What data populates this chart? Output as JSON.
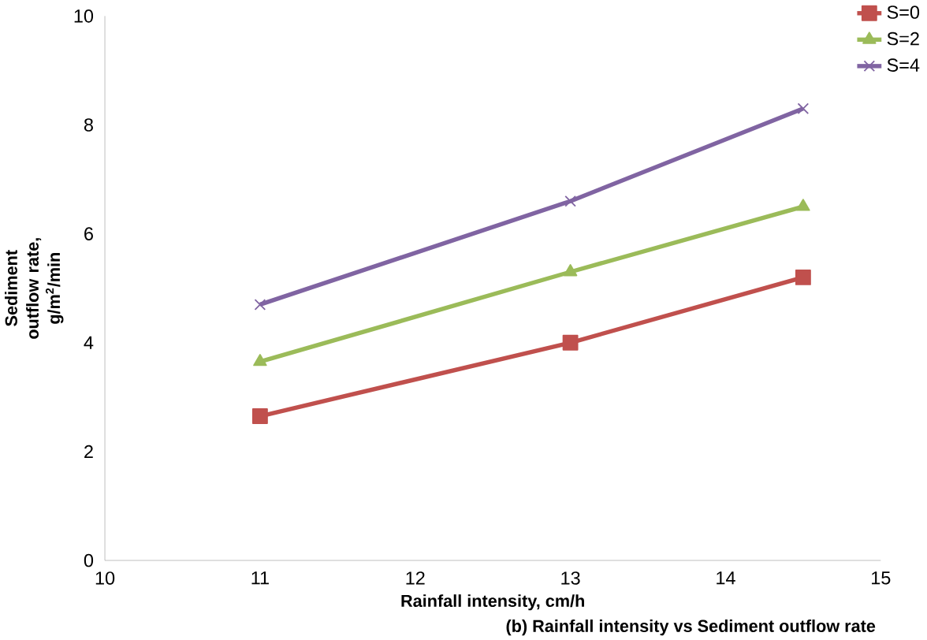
{
  "chart_data": {
    "type": "line",
    "xlabel": "Rainfall intensity, cm/h",
    "ylabel": "Sediment outflow rate, g/m$^{2}$/min",
    "annotations": [
      "(b) Rainfall intensity vs Sediment outflow rate"
    ],
    "x": [
      11,
      13,
      14.5
    ],
    "series": [
      {
        "name": "S=0",
        "color": "#c0504d",
        "marker": "square",
        "values": [
          2.65,
          4.0,
          5.2
        ]
      },
      {
        "name": "S=2",
        "color": "#9bbb59",
        "marker": "triangle",
        "values": [
          3.65,
          5.3,
          6.5
        ]
      },
      {
        "name": "S=4",
        "color": "#8064a2",
        "marker": "cross",
        "values": [
          4.7,
          6.6,
          8.3
        ]
      }
    ],
    "xlim": [
      10,
      15
    ],
    "ylim": [
      0,
      10
    ],
    "xticks": [
      10,
      11,
      12,
      13,
      14,
      15
    ],
    "yticks": [
      0,
      2,
      4,
      6,
      8,
      10
    ],
    "legend": "top right",
    "grid": false
  }
}
